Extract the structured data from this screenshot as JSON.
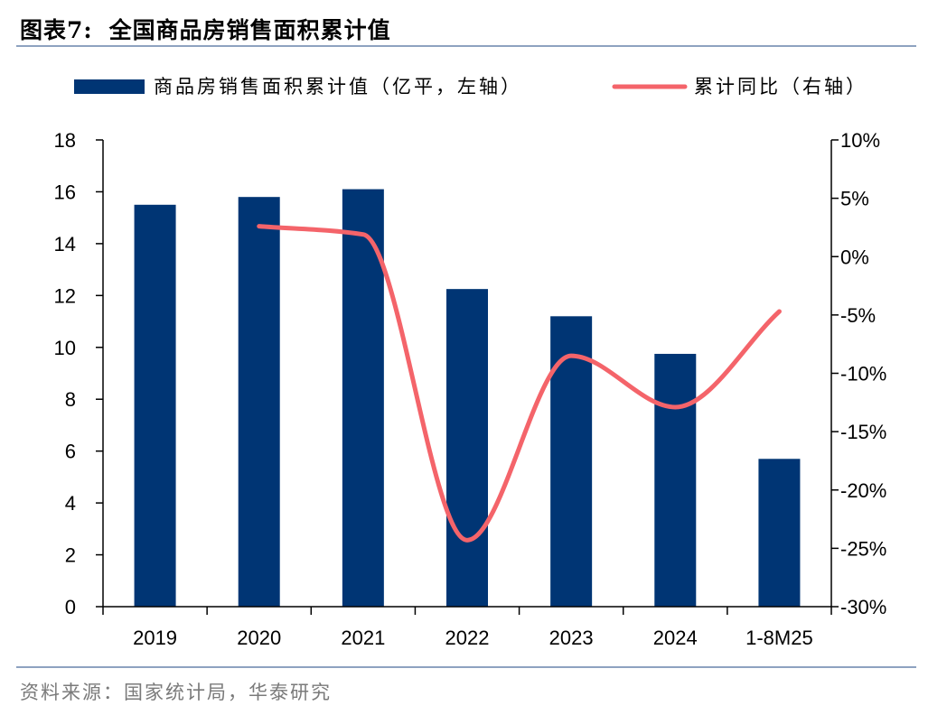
{
  "header": {
    "figure_number": "图表7:",
    "title": "全国商品房销售面积累计值"
  },
  "source": "资料来源：国家统计局，华泰研究",
  "colors": {
    "bar": "#003574",
    "line": "#f4646a",
    "rule": "#8ea2c0"
  },
  "chart_data": {
    "type": "bar",
    "categories": [
      "2019",
      "2020",
      "2021",
      "2022",
      "2023",
      "2024",
      "1-8M25"
    ],
    "series": [
      {
        "name": "商品房销售面积累计值（亿平，左轴）",
        "type": "bar",
        "axis": "left",
        "values": [
          15.5,
          15.8,
          16.1,
          12.25,
          11.2,
          9.75,
          5.7
        ]
      },
      {
        "name": "累计同比（右轴）",
        "type": "line",
        "axis": "right",
        "values": [
          null,
          2.6,
          1.9,
          -24.3,
          -8.5,
          -12.9,
          -4.7
        ]
      }
    ],
    "left_axis": {
      "ylim": [
        0,
        18
      ],
      "ticks": [
        "0",
        "2",
        "4",
        "6",
        "8",
        "10",
        "12",
        "14",
        "16",
        "18"
      ]
    },
    "right_axis": {
      "ylim": [
        -30,
        10
      ],
      "ticks": [
        "-30%",
        "-25%",
        "-20%",
        "-15%",
        "-10%",
        "-5%",
        "0%",
        "5%",
        "10%"
      ]
    },
    "legend_position": "top",
    "grid": false
  }
}
